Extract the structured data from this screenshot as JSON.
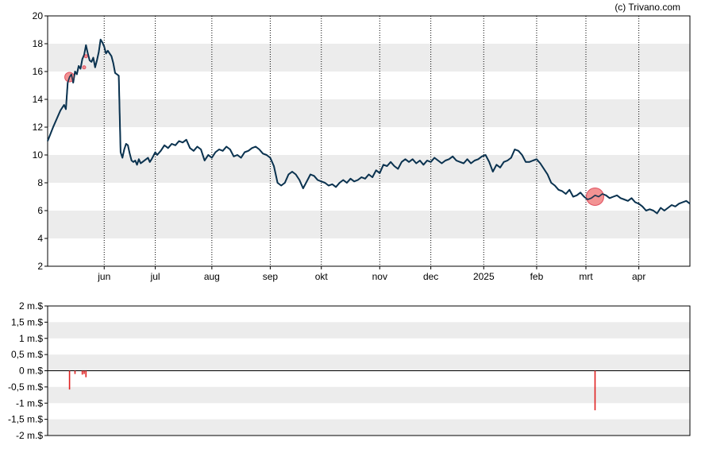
{
  "copyright": "(c) Trivano.com",
  "colors": {
    "line": "#0b3350",
    "marker_fill": "#f08080",
    "marker_stroke": "#e05060",
    "bar": "#e02020",
    "band": "#ececec"
  },
  "chart_data": [
    {
      "type": "line",
      "ylim": [
        2,
        20
      ],
      "yticks": [
        "2",
        "4",
        "6",
        "8",
        "10",
        "12",
        "14",
        "16",
        "18",
        "20"
      ],
      "xlim": [
        0,
        352
      ],
      "xticks": [
        {
          "label": "jun",
          "x": 31
        },
        {
          "label": "jul",
          "x": 59
        },
        {
          "label": "aug",
          "x": 90
        },
        {
          "label": "sep",
          "x": 122
        },
        {
          "label": "okt",
          "x": 150
        },
        {
          "label": "nov",
          "x": 182
        },
        {
          "label": "dec",
          "x": 210
        },
        {
          "label": "2025",
          "x": 239
        },
        {
          "label": "feb",
          "x": 268
        },
        {
          "label": "mrt",
          "x": 295
        },
        {
          "label": "apr",
          "x": 324
        }
      ],
      "grid": "vertical dotted",
      "series": [
        {
          "points": [
            [
              0,
              11.0
            ],
            [
              3,
              12.0
            ],
            [
              5,
              12.6
            ],
            [
              7,
              13.2
            ],
            [
              9,
              13.6
            ],
            [
              10,
              13.3
            ],
            [
              11,
              15.2
            ],
            [
              12,
              15.6
            ],
            [
              13,
              15.8
            ],
            [
              14,
              15.2
            ],
            [
              15,
              16.0
            ],
            [
              16,
              15.8
            ],
            [
              17,
              16.4
            ],
            [
              18,
              16.2
            ],
            [
              19,
              16.9
            ],
            [
              20,
              17.2
            ],
            [
              21,
              17.9
            ],
            [
              22,
              17.3
            ],
            [
              23,
              16.8
            ],
            [
              24,
              16.7
            ],
            [
              25,
              17.0
            ],
            [
              26,
              16.3
            ],
            [
              27,
              16.8
            ],
            [
              28,
              17.4
            ],
            [
              29,
              18.3
            ],
            [
              30,
              18.1
            ],
            [
              31,
              17.8
            ],
            [
              32,
              17.3
            ],
            [
              33,
              17.5
            ],
            [
              34,
              17.3
            ],
            [
              35,
              17.1
            ],
            [
              36,
              16.6
            ],
            [
              37,
              15.9
            ],
            [
              38,
              15.8
            ],
            [
              39,
              15.7
            ],
            [
              40,
              10.2
            ],
            [
              41,
              9.8
            ],
            [
              42,
              10.4
            ],
            [
              43,
              10.8
            ],
            [
              44,
              10.7
            ],
            [
              45,
              10.1
            ],
            [
              46,
              9.6
            ],
            [
              47,
              9.5
            ],
            [
              48,
              9.6
            ],
            [
              49,
              9.3
            ],
            [
              50,
              9.7
            ],
            [
              51,
              9.4
            ],
            [
              52,
              9.5
            ],
            [
              54,
              9.7
            ],
            [
              55,
              9.8
            ],
            [
              56,
              9.5
            ],
            [
              57,
              9.7
            ],
            [
              59,
              10.2
            ],
            [
              60,
              10.0
            ],
            [
              62,
              10.3
            ],
            [
              63,
              10.5
            ],
            [
              64,
              10.7
            ],
            [
              66,
              10.5
            ],
            [
              68,
              10.8
            ],
            [
              70,
              10.7
            ],
            [
              72,
              11.0
            ],
            [
              74,
              10.9
            ],
            [
              76,
              11.1
            ],
            [
              78,
              10.5
            ],
            [
              80,
              10.3
            ],
            [
              82,
              10.6
            ],
            [
              84,
              10.4
            ],
            [
              86,
              9.6
            ],
            [
              88,
              10.0
            ],
            [
              90,
              9.8
            ],
            [
              92,
              10.2
            ],
            [
              94,
              10.4
            ],
            [
              96,
              10.3
            ],
            [
              98,
              10.6
            ],
            [
              100,
              10.4
            ],
            [
              102,
              9.9
            ],
            [
              104,
              10.0
            ],
            [
              106,
              9.8
            ],
            [
              108,
              10.2
            ],
            [
              110,
              10.3
            ],
            [
              112,
              10.5
            ],
            [
              114,
              10.6
            ],
            [
              116,
              10.4
            ],
            [
              118,
              10.1
            ],
            [
              120,
              10.0
            ],
            [
              122,
              9.8
            ],
            [
              124,
              9.2
            ],
            [
              126,
              8.0
            ],
            [
              128,
              7.8
            ],
            [
              130,
              8.0
            ],
            [
              132,
              8.6
            ],
            [
              134,
              8.8
            ],
            [
              136,
              8.6
            ],
            [
              138,
              8.2
            ],
            [
              140,
              7.6
            ],
            [
              142,
              8.1
            ],
            [
              144,
              8.6
            ],
            [
              146,
              8.5
            ],
            [
              148,
              8.2
            ],
            [
              150,
              8.1
            ],
            [
              152,
              8.0
            ],
            [
              154,
              7.8
            ],
            [
              156,
              7.9
            ],
            [
              158,
              7.7
            ],
            [
              160,
              8.0
            ],
            [
              162,
              8.2
            ],
            [
              164,
              8.0
            ],
            [
              166,
              8.3
            ],
            [
              168,
              8.1
            ],
            [
              170,
              8.2
            ],
            [
              172,
              8.4
            ],
            [
              174,
              8.3
            ],
            [
              176,
              8.6
            ],
            [
              178,
              8.4
            ],
            [
              180,
              8.9
            ],
            [
              182,
              8.7
            ],
            [
              184,
              9.3
            ],
            [
              186,
              9.2
            ],
            [
              188,
              9.5
            ],
            [
              190,
              9.2
            ],
            [
              192,
              9.0
            ],
            [
              194,
              9.5
            ],
            [
              196,
              9.7
            ],
            [
              198,
              9.5
            ],
            [
              200,
              9.7
            ],
            [
              202,
              9.4
            ],
            [
              204,
              9.6
            ],
            [
              206,
              9.3
            ],
            [
              208,
              9.6
            ],
            [
              210,
              9.5
            ],
            [
              212,
              9.8
            ],
            [
              214,
              9.6
            ],
            [
              216,
              9.4
            ],
            [
              218,
              9.6
            ],
            [
              220,
              9.7
            ],
            [
              222,
              9.9
            ],
            [
              224,
              9.6
            ],
            [
              226,
              9.5
            ],
            [
              228,
              9.4
            ],
            [
              230,
              9.7
            ],
            [
              232,
              9.4
            ],
            [
              234,
              9.6
            ],
            [
              236,
              9.7
            ],
            [
              238,
              9.9
            ],
            [
              240,
              10.0
            ],
            [
              242,
              9.5
            ],
            [
              244,
              8.8
            ],
            [
              246,
              9.3
            ],
            [
              248,
              9.1
            ],
            [
              250,
              9.5
            ],
            [
              252,
              9.6
            ],
            [
              254,
              9.8
            ],
            [
              256,
              10.4
            ],
            [
              258,
              10.3
            ],
            [
              260,
              10.0
            ],
            [
              262,
              9.5
            ],
            [
              264,
              9.5
            ],
            [
              266,
              9.6
            ],
            [
              268,
              9.7
            ],
            [
              270,
              9.4
            ],
            [
              272,
              9.0
            ],
            [
              274,
              8.6
            ],
            [
              276,
              8.0
            ],
            [
              278,
              7.8
            ],
            [
              280,
              7.5
            ],
            [
              282,
              7.4
            ],
            [
              284,
              7.2
            ],
            [
              286,
              7.5
            ],
            [
              288,
              7.0
            ],
            [
              290,
              7.1
            ],
            [
              292,
              7.3
            ],
            [
              294,
              7.0
            ],
            [
              296,
              6.8
            ],
            [
              298,
              6.9
            ],
            [
              300,
              7.1
            ],
            [
              302,
              7.0
            ],
            [
              304,
              7.2
            ],
            [
              306,
              7.1
            ],
            [
              308,
              6.9
            ],
            [
              310,
              7.0
            ],
            [
              312,
              7.1
            ],
            [
              314,
              6.9
            ],
            [
              316,
              6.8
            ],
            [
              318,
              6.7
            ],
            [
              320,
              6.9
            ],
            [
              322,
              6.6
            ],
            [
              324,
              6.5
            ],
            [
              326,
              6.3
            ],
            [
              328,
              6.0
            ],
            [
              330,
              6.1
            ],
            [
              332,
              6.0
            ],
            [
              334,
              5.8
            ],
            [
              336,
              6.2
            ],
            [
              338,
              6.0
            ],
            [
              340,
              6.2
            ],
            [
              342,
              6.4
            ],
            [
              344,
              6.3
            ],
            [
              346,
              6.5
            ],
            [
              348,
              6.6
            ],
            [
              350,
              6.7
            ],
            [
              352,
              6.5
            ]
          ]
        }
      ],
      "markers": [
        {
          "x": 12,
          "y": 15.6,
          "size": "medium"
        },
        {
          "x": 20,
          "y": 16.3,
          "size": "small"
        },
        {
          "x": 21,
          "y": 17.1,
          "size": "small"
        },
        {
          "x": 300,
          "y": 7.0,
          "size": "large"
        }
      ]
    },
    {
      "type": "bar",
      "ylim": [
        -2,
        2
      ],
      "yticks": [
        "-2 m.$",
        "-1,5 m.$",
        "-1 m.$",
        "-0,5 m.$",
        "0 m.$",
        "0,5 m.$",
        "1 m.$",
        "1,5 m.$",
        "2 m.$"
      ],
      "xlim": [
        0,
        352
      ],
      "values": [
        {
          "x": 12,
          "y": -0.58
        },
        {
          "x": 15,
          "y": -0.1
        },
        {
          "x": 19,
          "y": -0.12
        },
        {
          "x": 20,
          "y": -0.1
        },
        {
          "x": 21,
          "y": -0.2
        },
        {
          "x": 300,
          "y": -1.22
        }
      ]
    }
  ]
}
